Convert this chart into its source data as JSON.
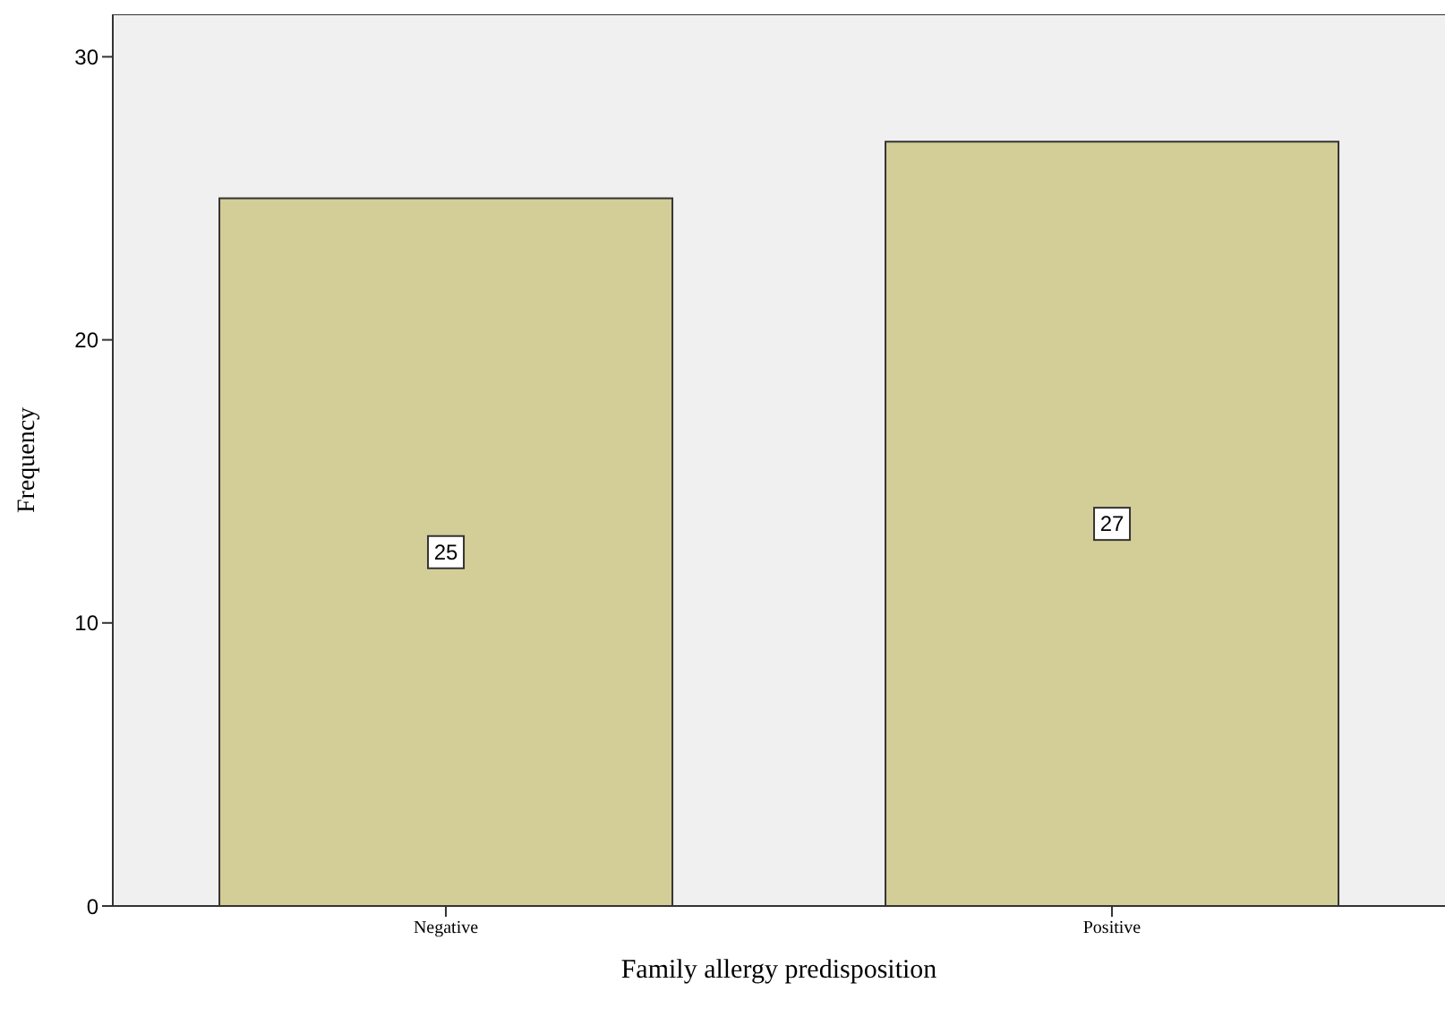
{
  "chart_data": {
    "type": "bar",
    "xlabel": "Family allergy predisposition",
    "ylabel": "Frequency",
    "categories": [
      "Negative",
      "Positive"
    ],
    "values": [
      25,
      27
    ],
    "color": "#d3ce97",
    "ylim": [
      0,
      31.5
    ],
    "yticks": [
      0,
      10,
      20,
      30
    ],
    "grid": false,
    "data_labels": true
  }
}
